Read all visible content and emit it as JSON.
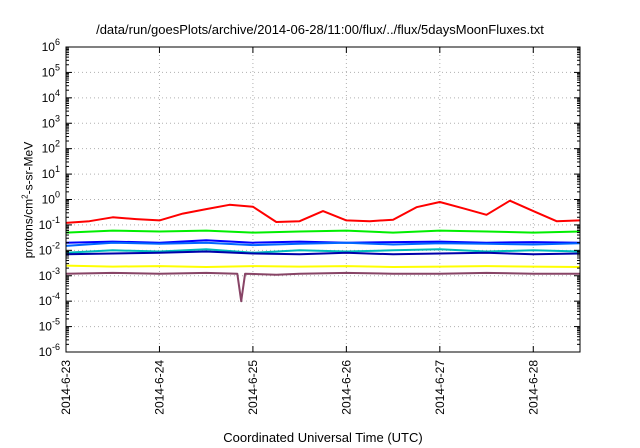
{
  "chart_data": {
    "type": "line",
    "title": "/data/run/goesPlots/archive/2014-06-28/11:00/flux/../flux/5daysMoonFluxes.txt",
    "xlabel": "Coordinated Universal Time (UTC)",
    "ylabel": {
      "pre": "protons/cm",
      "sup": "2",
      "post": "-s-sr-MeV"
    },
    "y_scale": "log",
    "ylim": [
      1e-06,
      1000000.0
    ],
    "y_ticks": [
      {
        "base": "10",
        "exp": "-6"
      },
      {
        "base": "10",
        "exp": "-5"
      },
      {
        "base": "10",
        "exp": "-4"
      },
      {
        "base": "10",
        "exp": "-3"
      },
      {
        "base": "10",
        "exp": "-2"
      },
      {
        "base": "10",
        "exp": "-1"
      },
      {
        "base": "10",
        "exp": "0"
      },
      {
        "base": "10",
        "exp": "1"
      },
      {
        "base": "10",
        "exp": "2"
      },
      {
        "base": "10",
        "exp": "3"
      },
      {
        "base": "10",
        "exp": "4"
      },
      {
        "base": "10",
        "exp": "5"
      },
      {
        "base": "10",
        "exp": "6"
      }
    ],
    "xlim": [
      "2014-06-23 00:00",
      "2014-06-28 12:00"
    ],
    "x_ticks": [
      "2014-6-23",
      "2014-6-24",
      "2014-6-25",
      "2014-6-26",
      "2014-6-27",
      "2014-6-28"
    ],
    "grid": true,
    "series": [
      {
        "color": "#ff0000",
        "x": [
          "2014-06-23 00:00",
          "2014-06-23 06:00",
          "2014-06-23 12:00",
          "2014-06-23 18:00",
          "2014-06-24 00:00",
          "2014-06-24 06:00",
          "2014-06-24 12:00",
          "2014-06-24 18:00",
          "2014-06-25 00:00",
          "2014-06-25 06:00",
          "2014-06-25 12:00",
          "2014-06-25 18:00",
          "2014-06-26 00:00",
          "2014-06-26 06:00",
          "2014-06-26 12:00",
          "2014-06-26 18:00",
          "2014-06-27 00:00",
          "2014-06-27 06:00",
          "2014-06-27 12:00",
          "2014-06-27 18:00",
          "2014-06-28 00:00",
          "2014-06-28 06:00",
          "2014-06-28 12:00"
        ],
        "y": [
          0.12,
          0.14,
          0.2,
          0.17,
          0.15,
          0.28,
          0.42,
          0.62,
          0.52,
          0.13,
          0.14,
          0.35,
          0.15,
          0.14,
          0.16,
          0.5,
          0.8,
          0.45,
          0.25,
          0.9,
          0.35,
          0.14,
          0.15
        ]
      },
      {
        "color": "#00ee00",
        "x": [
          "2014-06-23 00:00",
          "2014-06-23 12:00",
          "2014-06-24 00:00",
          "2014-06-24 12:00",
          "2014-06-25 00:00",
          "2014-06-25 12:00",
          "2014-06-26 00:00",
          "2014-06-26 12:00",
          "2014-06-27 00:00",
          "2014-06-27 12:00",
          "2014-06-28 00:00",
          "2014-06-28 12:00"
        ],
        "y": [
          0.05,
          0.06,
          0.055,
          0.06,
          0.05,
          0.055,
          0.06,
          0.05,
          0.06,
          0.055,
          0.05,
          0.055
        ]
      },
      {
        "color": "#00bbbb",
        "x": [
          "2014-06-23 00:00",
          "2014-06-23 12:00",
          "2014-06-24 00:00",
          "2014-06-24 12:00",
          "2014-06-25 00:00",
          "2014-06-25 12:00",
          "2014-06-26 00:00",
          "2014-06-26 12:00",
          "2014-06-27 00:00",
          "2014-06-27 12:00",
          "2014-06-28 00:00",
          "2014-06-28 12:00"
        ],
        "y": [
          0.008,
          0.01,
          0.009,
          0.011,
          0.008,
          0.01,
          0.009,
          0.01,
          0.011,
          0.009,
          0.01,
          0.009
        ]
      },
      {
        "color": "#0000ff",
        "x": [
          "2014-06-23 00:00",
          "2014-06-23 12:00",
          "2014-06-24 00:00",
          "2014-06-24 12:00",
          "2014-06-25 00:00",
          "2014-06-25 12:00",
          "2014-06-26 00:00",
          "2014-06-26 12:00",
          "2014-06-27 00:00",
          "2014-06-27 12:00",
          "2014-06-28 00:00",
          "2014-06-28 12:00"
        ],
        "y": [
          0.02,
          0.022,
          0.02,
          0.025,
          0.02,
          0.022,
          0.02,
          0.021,
          0.022,
          0.02,
          0.021,
          0.02
        ]
      },
      {
        "color": "#0066ff",
        "x": [
          "2014-06-23 00:00",
          "2014-06-23 12:00",
          "2014-06-24 00:00",
          "2014-06-24 12:00",
          "2014-06-25 00:00",
          "2014-06-25 12:00",
          "2014-06-26 00:00",
          "2014-06-26 12:00",
          "2014-06-27 00:00",
          "2014-06-27 12:00",
          "2014-06-28 00:00",
          "2014-06-28 12:00"
        ],
        "y": [
          0.015,
          0.02,
          0.018,
          0.02,
          0.016,
          0.018,
          0.02,
          0.017,
          0.019,
          0.018,
          0.017,
          0.019
        ]
      },
      {
        "color": "#0000aa",
        "x": [
          "2014-06-23 00:00",
          "2014-06-23 12:00",
          "2014-06-24 00:00",
          "2014-06-24 12:00",
          "2014-06-25 00:00",
          "2014-06-25 12:00",
          "2014-06-26 00:00",
          "2014-06-26 12:00",
          "2014-06-27 00:00",
          "2014-06-27 12:00",
          "2014-06-28 00:00",
          "2014-06-28 12:00"
        ],
        "y": [
          0.007,
          0.0075,
          0.008,
          0.009,
          0.0075,
          0.007,
          0.008,
          0.007,
          0.0075,
          0.008,
          0.007,
          0.0075
        ]
      },
      {
        "color": "#ffff00",
        "x": [
          "2014-06-23 00:00",
          "2014-06-23 12:00",
          "2014-06-24 00:00",
          "2014-06-24 12:00",
          "2014-06-25 00:00",
          "2014-06-25 12:00",
          "2014-06-26 00:00",
          "2014-06-26 12:00",
          "2014-06-27 00:00",
          "2014-06-27 12:00",
          "2014-06-28 00:00",
          "2014-06-28 12:00"
        ],
        "y": [
          0.0025,
          0.0023,
          0.0024,
          0.0022,
          0.0024,
          0.0023,
          0.0024,
          0.0022,
          0.0023,
          0.0024,
          0.0023,
          0.0022
        ]
      },
      {
        "color": "#884466",
        "x": [
          "2014-06-23 00:00",
          "2014-06-23 12:00",
          "2014-06-24 00:00",
          "2014-06-24 12:00",
          "2014-06-24 20:00",
          "2014-06-24 21:00",
          "2014-06-24 22:00",
          "2014-06-25 06:00",
          "2014-06-25 12:00",
          "2014-06-26 00:00",
          "2014-06-26 12:00",
          "2014-06-27 00:00",
          "2014-06-27 12:00",
          "2014-06-28 00:00",
          "2014-06-28 12:00"
        ],
        "y": [
          0.0012,
          0.0013,
          0.0012,
          0.0013,
          0.0012,
          0.0001,
          0.0012,
          0.0011,
          0.0012,
          0.0013,
          0.0012,
          0.0012,
          0.0013,
          0.0012,
          0.0012
        ]
      }
    ]
  }
}
